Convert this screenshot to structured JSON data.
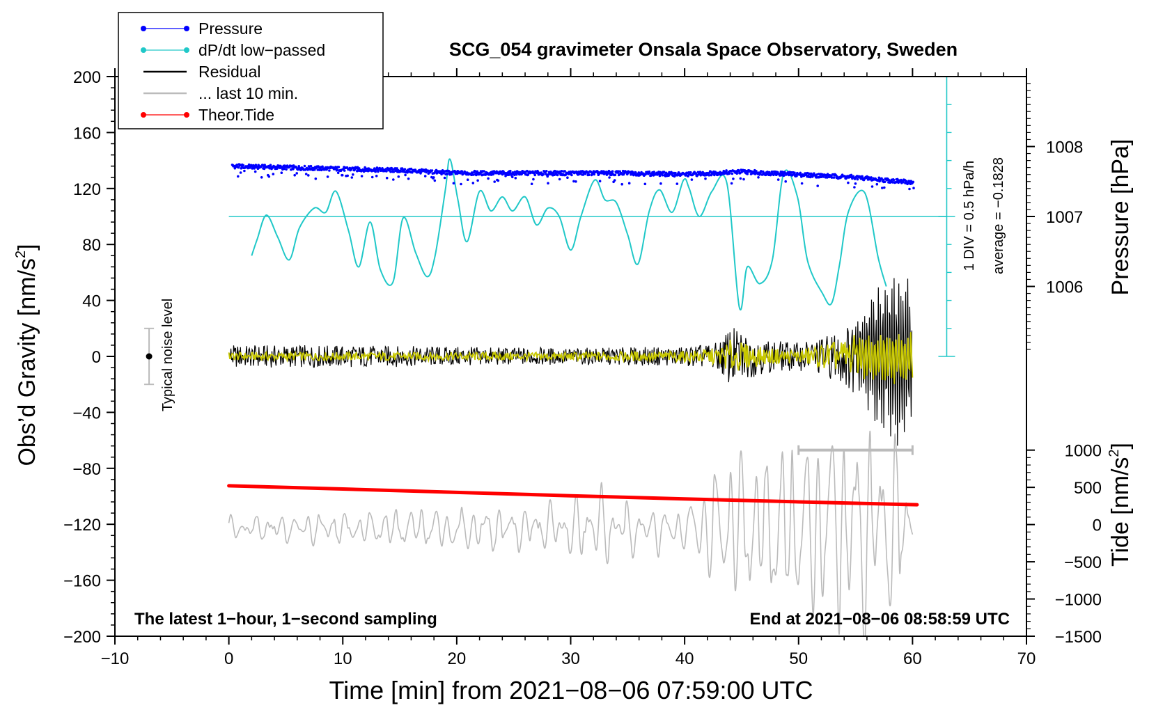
{
  "chart_data": {
    "type": "line",
    "title": "SCG_054 gravimeter Onsala Space Observatory, Sweden",
    "xlabel": "Time [min] from 2021−08−06 07:59:00 UTC",
    "ylabel": "Obs’d Gravity [nm/s",
    "ylabel_sup": "2",
    "ylabel_tail": "]",
    "xlim": [
      -10,
      70
    ],
    "ylim": [
      -200,
      200
    ],
    "x_ticks": [
      -10,
      0,
      10,
      20,
      30,
      40,
      50,
      60,
      70
    ],
    "x_tick_labels": [
      "−10",
      "0",
      "10",
      "20",
      "30",
      "40",
      "50",
      "60",
      "70"
    ],
    "y_ticks": [
      -200,
      -160,
      -120,
      -80,
      -40,
      0,
      40,
      80,
      120,
      160,
      200
    ],
    "y_tick_labels": [
      "−200",
      "−160",
      "−120",
      "−80",
      "−40",
      "0",
      "40",
      "80",
      "120",
      "160",
      "200"
    ],
    "right_axes": {
      "pressure": {
        "label": "Pressure [hPa]",
        "ticks": [
          1006,
          1007,
          1008
        ],
        "tick_labels": [
          "1006",
          "1007",
          "1008"
        ],
        "gravity_at_1007": 100,
        "gravity_per_hPa": 50
      },
      "tide": {
        "label": "Tide [nm/s",
        "label_sup": "2",
        "label_tail": "]",
        "ticks": [
          1000,
          500,
          0,
          -500,
          -1000,
          -1500
        ],
        "tick_labels": [
          "1000",
          "500",
          "0",
          "−500",
          "−1000",
          "−1500"
        ],
        "range": [
          -1500,
          1000
        ],
        "gravity_range": [
          -200,
          -67
        ]
      }
    },
    "legend": {
      "position": "top-left",
      "entries": [
        {
          "label": "Pressure",
          "color": "#0000ff",
          "marker": "dot"
        },
        {
          "label": "dP/dt low−passed",
          "color": "#20c8c8",
          "marker": "dot"
        },
        {
          "label": "Residual",
          "color": "#000000",
          "marker": "none"
        },
        {
          "label": "... last 10 min.",
          "color": "#bbbbbb",
          "marker": "none"
        },
        {
          "label": "Theor.Tide",
          "color": "#ff0000",
          "marker": "dot"
        }
      ]
    },
    "annotations": {
      "bottom_left": "The latest 1−hour, 1−second sampling",
      "bottom_right": "End at 2021−08−06 08:58:59 UTC",
      "noise_label": "Typical noise level",
      "noise_bar": {
        "x": -7,
        "center": 0,
        "half_range": 20
      },
      "dpdt_scale_1": "1 DIV = 0.5 hPa/h",
      "dpdt_scale_2": "average = −0.1828",
      "dpdt_scale_axis": {
        "x": 63,
        "y_min": 0,
        "y_max": 200,
        "div": 20,
        "baseline": 100
      },
      "last10_range": {
        "x_start": 50,
        "x_end": 60,
        "y": -67
      }
    },
    "series": [
      {
        "name": "Pressure",
        "color": "#0000ff",
        "kind": "dots",
        "x": [
          0,
          5,
          10,
          15,
          20,
          25,
          30,
          35,
          40,
          45,
          50,
          55,
          60.3
        ],
        "values": [
          136,
          135,
          134,
          133,
          131,
          131,
          131,
          131,
          130,
          132,
          130,
          128,
          124
        ]
      },
      {
        "name": "dP/dt low-passed",
        "color": "#20c8c8",
        "x": [
          2,
          2.5,
          3.3,
          4.3,
          5.3,
          6.2,
          7.5,
          8.5,
          9.4,
          10.5,
          11.4,
          12.4,
          13.3,
          14.4,
          15.3,
          16.4,
          17.4,
          18.1,
          19.0,
          19.4,
          20.1,
          20.9,
          22.0,
          23.0,
          24.0,
          24.9,
          26.0,
          27.0,
          28.0,
          29.0,
          30.0,
          30.9,
          32.1,
          33.0,
          34.0,
          35.0,
          35.9,
          36.9,
          37.8,
          38.9,
          39.9,
          40.4,
          41.3,
          42.4,
          43.7,
          44.8,
          45.5,
          46.6,
          47.7,
          48.7,
          49.9,
          50.8,
          52.1,
          52.9,
          53.6,
          54.4,
          55.8,
          57.0,
          57.7
        ],
        "values": [
          72,
          84,
          101,
          85,
          69,
          92,
          106,
          103,
          118,
          90,
          64,
          96,
          62,
          53,
          99,
          74,
          57,
          72,
          119,
          141,
          112,
          82,
          118,
          104,
          114,
          104,
          114,
          94,
          106,
          100,
          76,
          100,
          126,
          112,
          110,
          87,
          66,
          104,
          119,
          103,
          126,
          120,
          100,
          118,
          124,
          35,
          64,
          52,
          69,
          131,
          114,
          68,
          45,
          38,
          66,
          104,
          117,
          70,
          50
        ]
      },
      {
        "name": "Residual",
        "color": "#000000",
        "x": [
          0,
          10,
          20,
          30,
          40,
          43,
          44,
          45,
          47,
          50,
          52,
          54,
          55,
          56,
          57,
          58,
          59,
          60
        ],
        "envelope": [
          8,
          8,
          7,
          6,
          7,
          10,
          22,
          18,
          12,
          10,
          14,
          20,
          30,
          45,
          55,
          60,
          70,
          55
        ]
      },
      {
        "name": "Residual (filtered)",
        "color": "#c8c800",
        "x": [
          0,
          10,
          20,
          30,
          40,
          43,
          44,
          45,
          47,
          50,
          52,
          54,
          55,
          56,
          57,
          58,
          59,
          60
        ],
        "envelope": [
          3,
          3,
          3,
          3,
          4,
          6,
          12,
          10,
          6,
          5,
          9,
          12,
          16,
          18,
          18,
          20,
          22,
          20
        ]
      },
      {
        "name": "... last 10 min.",
        "color": "#bbbbbb",
        "x": [
          0,
          5,
          10,
          15,
          20,
          25,
          30,
          32,
          35,
          40,
          42,
          44,
          46,
          48,
          50,
          52,
          53,
          55,
          57,
          59,
          60
        ],
        "envelope": [
          8,
          10,
          12,
          14,
          16,
          15,
          20,
          30,
          18,
          15,
          40,
          50,
          55,
          60,
          65,
          70,
          75,
          75,
          70,
          65,
          10
        ]
      },
      {
        "name": "Theor.Tide",
        "color": "#ff0000",
        "x": [
          0,
          10,
          20,
          30,
          40,
          50,
          60.4
        ],
        "values": [
          -92.5,
          -94.8,
          -97.2,
          -99.6,
          -101.9,
          -104.0,
          -106.0
        ]
      }
    ]
  }
}
